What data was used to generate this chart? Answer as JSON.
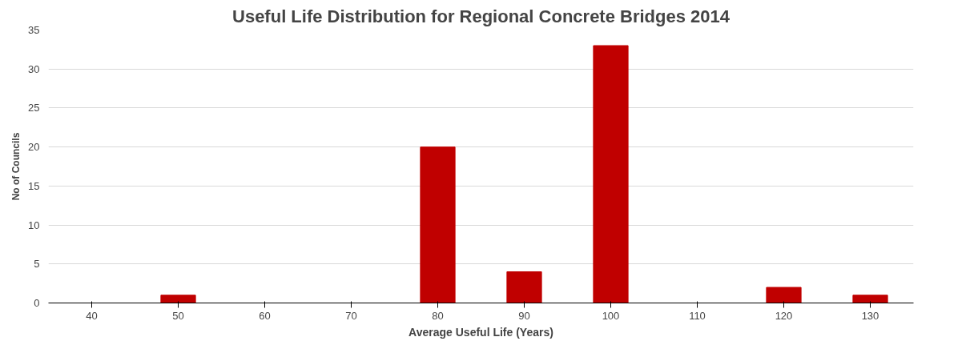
{
  "chart_data": {
    "type": "bar",
    "title": "Useful Life Distribution for Regional Concrete Bridges 2014",
    "xlabel": "Average Useful Life (Years)",
    "ylabel": "No of Councils",
    "categories": [
      "40",
      "50",
      "60",
      "70",
      "80",
      "90",
      "100",
      "110",
      "120",
      "130"
    ],
    "values": [
      0,
      1,
      0,
      0,
      20,
      4,
      33,
      0,
      2,
      1
    ],
    "color": "#c00000",
    "ylim": [
      0,
      35
    ],
    "yticks": [
      0,
      5,
      10,
      15,
      20,
      25,
      30,
      35
    ],
    "grid": "y"
  }
}
